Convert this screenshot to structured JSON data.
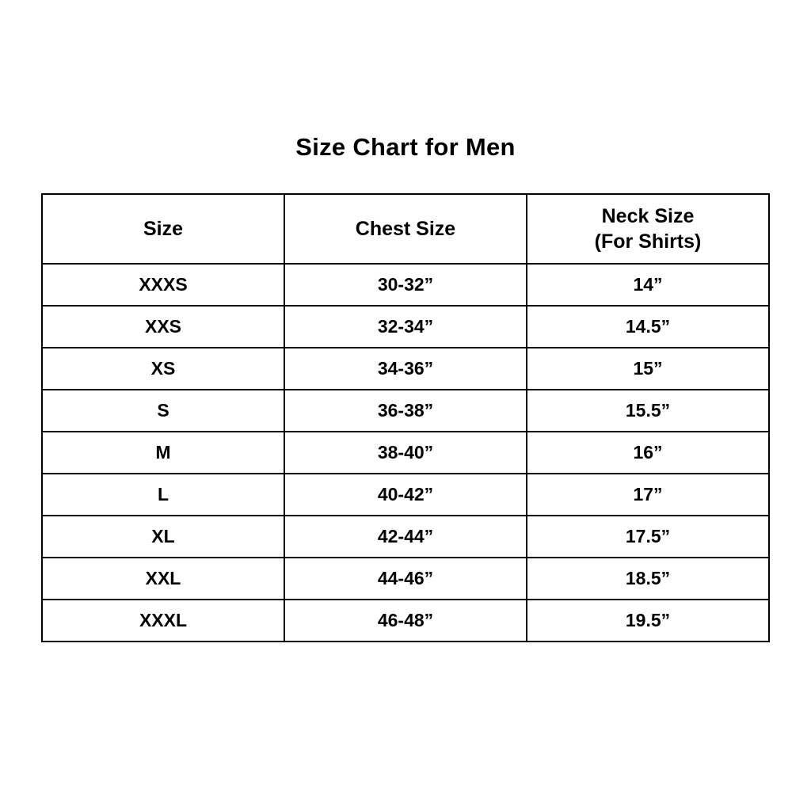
{
  "title": "Size Chart for Men",
  "table": {
    "headers": {
      "size": "Size",
      "chest": "Chest Size",
      "neck_line1": "Neck Size",
      "neck_line2": "(For Shirts)"
    },
    "rows": [
      {
        "size": "XXXS",
        "chest": "30-32”",
        "neck": "14”"
      },
      {
        "size": "XXS",
        "chest": "32-34”",
        "neck": "14.5”"
      },
      {
        "size": "XS",
        "chest": "34-36”",
        "neck": "15”"
      },
      {
        "size": "S",
        "chest": "36-38”",
        "neck": "15.5”"
      },
      {
        "size": "M",
        "chest": "38-40”",
        "neck": "16”"
      },
      {
        "size": "L",
        "chest": "40-42”",
        "neck": "17”"
      },
      {
        "size": "XL",
        "chest": "42-44”",
        "neck": "17.5”"
      },
      {
        "size": "XXL",
        "chest": "44-46”",
        "neck": "18.5”"
      },
      {
        "size": "XXXL",
        "chest": "46-48”",
        "neck": "19.5”"
      }
    ]
  },
  "chart_data": {
    "type": "table",
    "title": "Size Chart for Men",
    "columns": [
      "Size",
      "Chest Size",
      "Neck Size (For Shirts)"
    ],
    "rows": [
      [
        "XXXS",
        "30-32”",
        "14”"
      ],
      [
        "XXS",
        "32-34”",
        "14.5”"
      ],
      [
        "XS",
        "34-36”",
        "15”"
      ],
      [
        "S",
        "36-38”",
        "15.5”"
      ],
      [
        "M",
        "38-40”",
        "16”"
      ],
      [
        "L",
        "40-42”",
        "17”"
      ],
      [
        "XL",
        "42-44”",
        "17.5”"
      ],
      [
        "XXL",
        "44-46”",
        "18.5”"
      ],
      [
        "XXXL",
        "46-48”",
        "19.5”"
      ]
    ],
    "colors": {
      "border": "#000000",
      "background": "#ffffff",
      "text": "#000000"
    }
  }
}
